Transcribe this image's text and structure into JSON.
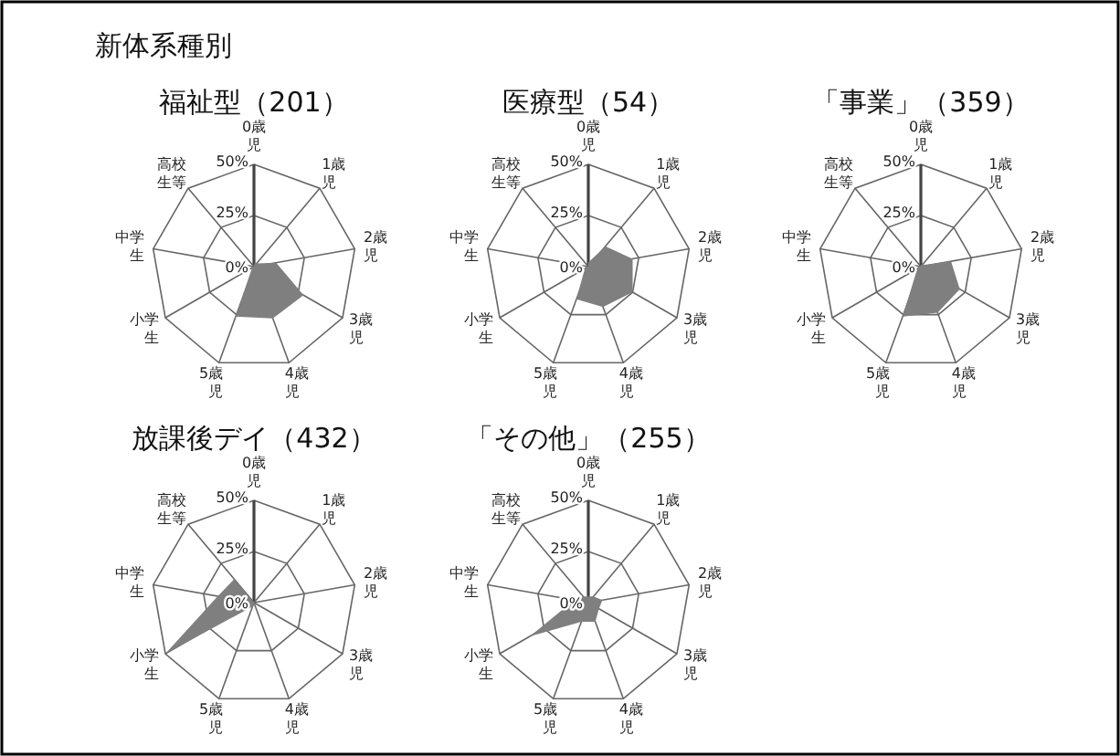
{
  "chart_data": [
    {
      "type": "radar",
      "title": "福祉型（201）",
      "annotations": [
        "新体系種別"
      ],
      "categories": [
        "0歳児",
        "1歳児",
        "2歳児",
        "3歳児",
        "4歳児",
        "5歳児",
        "小学生",
        "中学生",
        "高校生等"
      ],
      "ylim": [
        0,
        50
      ],
      "yticks": [
        {
          "value": 0,
          "label": "0%"
        },
        {
          "value": 25,
          "label": "25%"
        },
        {
          "value": 50,
          "label": "50%"
        }
      ],
      "series": [
        {
          "color": "#7f7f7f",
          "values": [
            1,
            2,
            11,
            28,
            27,
            26,
            1,
            1,
            0
          ]
        }
      ]
    },
    {
      "type": "radar",
      "title": "医療型（54）",
      "categories": [
        "0歳児",
        "1歳児",
        "2歳児",
        "3歳児",
        "4歳児",
        "5歳児",
        "小学生",
        "中学生",
        "高校生等"
      ],
      "ylim": [
        0,
        50
      ],
      "yticks": [
        {
          "value": 0,
          "label": "0%"
        },
        {
          "value": 25,
          "label": "25%"
        },
        {
          "value": 50,
          "label": "50%"
        }
      ],
      "series": [
        {
          "color": "#7f7f7f",
          "values": [
            2,
            13,
            22,
            25,
            21,
            17,
            2,
            0,
            0
          ]
        }
      ]
    },
    {
      "type": "radar",
      "title": "「事業」（359）",
      "categories": [
        "0歳児",
        "1歳児",
        "2歳児",
        "3歳児",
        "4歳児",
        "5歳児",
        "小学生",
        "中学生",
        "高校生等"
      ],
      "ylim": [
        0,
        50
      ],
      "yticks": [
        {
          "value": 0,
          "label": "0%"
        },
        {
          "value": 25,
          "label": "25%"
        },
        {
          "value": 50,
          "label": "50%"
        }
      ],
      "series": [
        {
          "color": "#7f7f7f",
          "values": [
            1,
            1,
            15,
            22,
            24,
            26,
            2,
            1,
            0
          ]
        }
      ]
    },
    {
      "type": "radar",
      "title": "放課後デイ（432）",
      "categories": [
        "0歳児",
        "1歳児",
        "2歳児",
        "3歳児",
        "4歳児",
        "5歳児",
        "小学生",
        "中学生",
        "高校生等"
      ],
      "ylim": [
        0,
        50
      ],
      "yticks": [
        {
          "value": 0,
          "label": "0%"
        },
        {
          "value": 25,
          "label": "25%"
        },
        {
          "value": 50,
          "label": "50%"
        }
      ],
      "series": [
        {
          "color": "#7f7f7f",
          "values": [
            0,
            0,
            0,
            1,
            1,
            2,
            50,
            18,
            15
          ]
        }
      ]
    },
    {
      "type": "radar",
      "title": "「その他」（255）",
      "categories": [
        "0歳児",
        "1歳児",
        "2歳児",
        "3歳児",
        "4歳児",
        "5歳児",
        "小学生",
        "中学生",
        "高校生等"
      ],
      "ylim": [
        0,
        50
      ],
      "yticks": [
        {
          "value": 0,
          "label": "0%"
        },
        {
          "value": 25,
          "label": "25%"
        },
        {
          "value": 50,
          "label": "50%"
        }
      ],
      "series": [
        {
          "color": "#7f7f7f",
          "values": [
            3,
            4,
            7,
            6,
            10,
            10,
            33,
            7,
            4
          ]
        }
      ]
    }
  ]
}
